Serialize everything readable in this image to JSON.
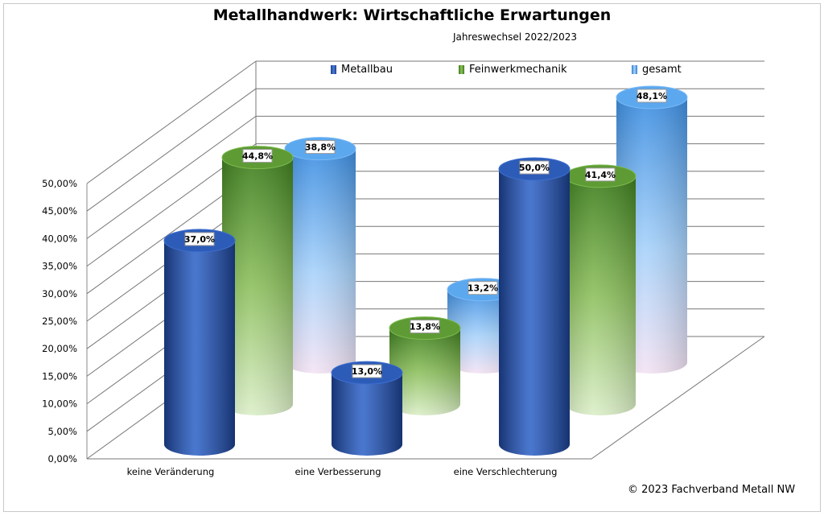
{
  "chart_data": {
    "type": "bar",
    "title": "Metallhandwerk: Wirtschaftliche Erwartungen",
    "subtitle": "Jahreswechsel 2022/2023",
    "categories": [
      "keine Veränderung",
      "eine Verbesserung",
      "eine Verschlechterung"
    ],
    "series": [
      {
        "name": "Metallbau",
        "values": [
          37.0,
          13.0,
          50.0
        ],
        "labels": [
          "37,0%",
          "13,0%",
          "50,0%"
        ],
        "color": "#2f5bb7"
      },
      {
        "name": "Feinwerkmechanik",
        "values": [
          44.8,
          13.8,
          41.4
        ],
        "labels": [
          "44,8%",
          "13,8%",
          "41,4%"
        ],
        "color": "#5c9a2e"
      },
      {
        "name": "gesamt",
        "values": [
          38.8,
          13.2,
          48.1
        ],
        "labels": [
          "38,8%",
          "13,2%",
          "48,1%"
        ],
        "color": "#4f9fe8"
      }
    ],
    "yticks": [
      "0,00%",
      "5,00%",
      "10,00%",
      "15,00%",
      "20,00%",
      "25,00%",
      "30,00%",
      "35,00%",
      "40,00%",
      "45,00%",
      "50,00%"
    ],
    "ylim": [
      0,
      50
    ],
    "legend_position": "top",
    "grid": true
  },
  "footer": {
    "copyright": "© 2023 Fachverband Metall NW"
  }
}
